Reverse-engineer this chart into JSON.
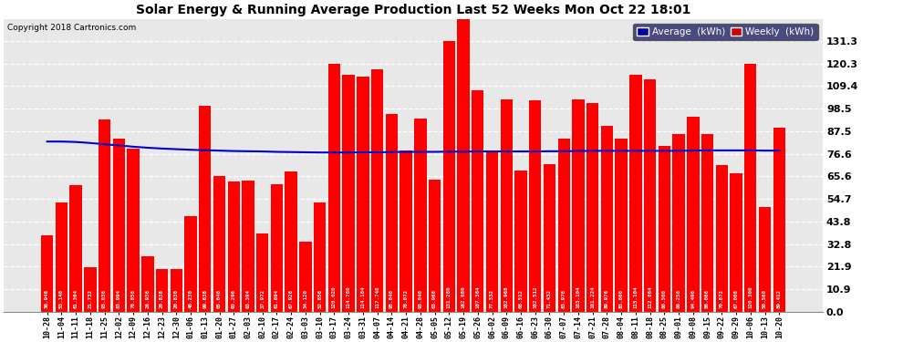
{
  "title": "Solar Energy & Running Average Production Last 52 Weeks Mon Oct 22 18:01",
  "copyright": "Copyright 2018 Cartronics.com",
  "bar_color": "#ff0000",
  "avg_line_color": "#0000cc",
  "background_color": "#ffffff",
  "plot_bg_color": "#e8e8e8",
  "grid_color": "#ffffff",
  "ylabel_right_values": [
    0.0,
    10.9,
    21.9,
    32.8,
    43.8,
    54.7,
    65.6,
    76.6,
    87.5,
    98.5,
    109.4,
    120.3,
    131.3
  ],
  "labels": [
    "10-28",
    "11-04",
    "11-11",
    "11-18",
    "11-25",
    "12-02",
    "12-09",
    "12-16",
    "12-23",
    "12-30",
    "01-06",
    "01-13",
    "01-20",
    "01-27",
    "02-03",
    "02-10",
    "02-17",
    "02-24",
    "03-03",
    "03-10",
    "03-17",
    "03-24",
    "03-31",
    "04-07",
    "04-14",
    "04-21",
    "04-28",
    "05-05",
    "05-12",
    "05-19",
    "05-26",
    "06-02",
    "06-09",
    "06-16",
    "06-23",
    "06-30",
    "07-07",
    "07-14",
    "07-21",
    "07-28",
    "08-04",
    "08-11",
    "08-18",
    "08-25",
    "09-01",
    "09-08",
    "09-15",
    "09-22",
    "09-29",
    "10-06",
    "10-13",
    "10-20"
  ],
  "weekly_values": [
    36.946,
    53.14,
    61.364,
    21.732,
    93.036,
    83.994,
    78.856,
    26.936,
    20.838,
    20.83,
    46.23,
    99.638,
    65.64,
    63.296,
    63.394,
    37.972,
    61.694,
    67.926,
    34.12,
    52.856,
    120.02,
    114.78,
    114.184,
    117.748,
    95.84,
    78.072,
    93.84,
    63.968,
    131.28,
    162.08,
    107.364,
    77.332,
    102.968,
    68.512,
    102.512,
    71.432,
    83.976,
    103.104,
    101.224,
    89.976,
    83.8,
    115.104,
    112.864,
    80.5,
    86.256,
    94.496,
    86.066,
    70.872,
    67.008,
    120.3,
    50.56,
    89.412
  ],
  "avg_values": [
    82.5,
    82.5,
    82.3,
    81.8,
    81.2,
    80.6,
    80.0,
    79.5,
    79.1,
    78.8,
    78.5,
    78.3,
    78.1,
    77.9,
    77.8,
    77.7,
    77.5,
    77.4,
    77.3,
    77.2,
    77.2,
    77.2,
    77.3,
    77.3,
    77.4,
    77.5,
    77.5,
    77.5,
    77.6,
    77.6,
    77.7,
    77.7,
    77.7,
    77.7,
    77.7,
    77.8,
    77.8,
    77.9,
    78.0,
    78.0,
    78.0,
    78.0,
    78.0,
    78.0,
    78.0,
    78.1,
    78.2,
    78.2,
    78.2,
    78.2,
    78.1,
    78.1
  ],
  "ylim": [
    0.0,
    142.0
  ],
  "legend_avg_bg": "#0000aa",
  "legend_weekly_bg": "#cc0000",
  "legend_avg_label": "Average  (kWh)",
  "legend_weekly_label": "Weekly  (kWh)"
}
